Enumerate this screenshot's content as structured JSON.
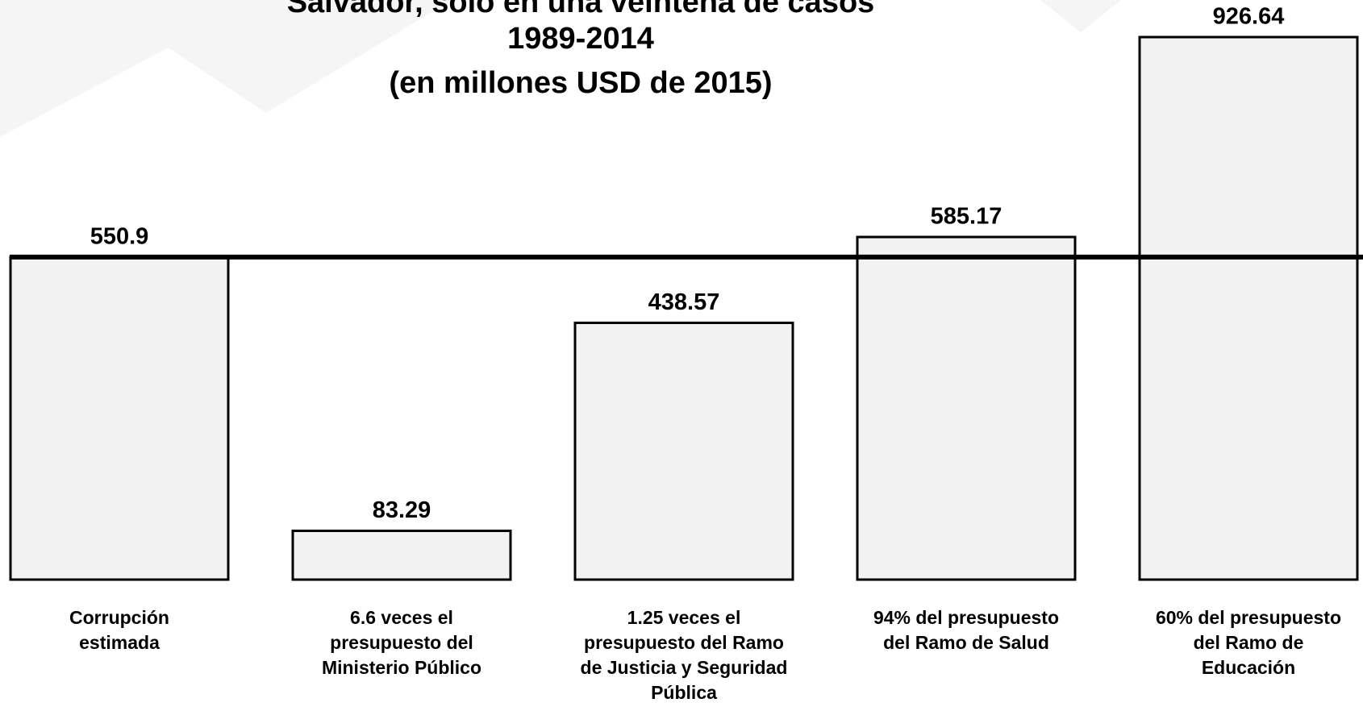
{
  "chart_data": {
    "type": "bar",
    "title": [
      "Salvador, solo en una veintena de casos",
      "1989-2014",
      "(en millones USD de 2015)"
    ],
    "categories": [
      [
        "Corrupción",
        "estimada"
      ],
      [
        "6.6 veces el",
        "presupuesto del",
        "Ministerio Público"
      ],
      [
        "1.25 veces el",
        "presupuesto del Ramo",
        "de Justicia y Seguridad",
        "Pública"
      ],
      [
        "94% del presupuesto",
        "del Ramo de Salud"
      ],
      [
        "60% del presupuesto",
        "del Ramo de",
        "Educación"
      ]
    ],
    "values": [
      550.9,
      83.29,
      438.57,
      585.17,
      926.64
    ],
    "color": "#f2f2f2",
    "ylim": [
      0,
      990
    ]
  }
}
